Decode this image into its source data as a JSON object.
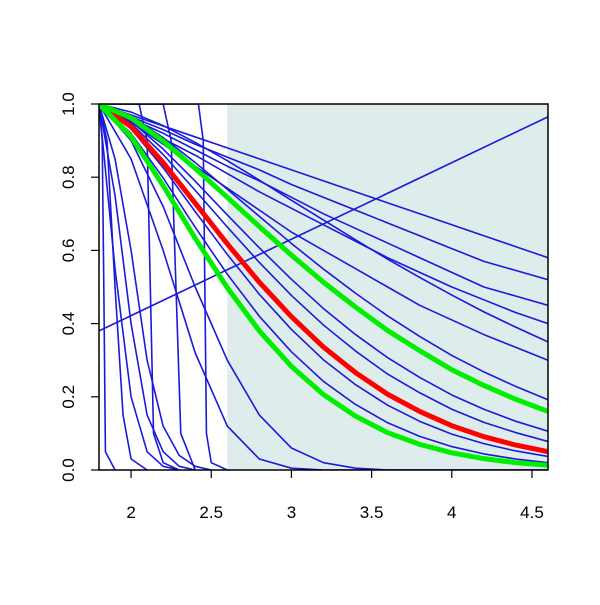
{
  "chart_data": {
    "type": "line",
    "xlim": [
      1.8,
      4.6
    ],
    "ylim": [
      0,
      1
    ],
    "xticks": [
      2.0,
      2.5,
      3.0,
      3.5,
      4.0,
      4.5
    ],
    "yticks": [
      0.0,
      0.2,
      0.4,
      0.6,
      0.8,
      1.0
    ],
    "shaded_region": {
      "xlim": [
        2.6,
        4.6
      ],
      "color": "#deeceb"
    },
    "line_color": "#1a1adb",
    "x": [
      1.8,
      2.0,
      2.2,
      2.4,
      2.6,
      2.8,
      3.0,
      3.2,
      3.4,
      3.6,
      3.8,
      4.0,
      4.2,
      4.4,
      4.6
    ],
    "series": [
      {
        "values": [
          1,
          0.97,
          0.94,
          0.91,
          0.88,
          0.85,
          0.82,
          0.79,
          0.76,
          0.73,
          0.7,
          0.67,
          0.64,
          0.61,
          0.58
        ]
      },
      {
        "values": [
          1,
          0.965,
          0.93,
          0.89,
          0.855,
          0.82,
          0.78,
          0.745,
          0.71,
          0.675,
          0.64,
          0.605,
          0.57,
          0.545,
          0.52
        ]
      },
      {
        "values": [
          1,
          0.96,
          0.92,
          0.875,
          0.83,
          0.79,
          0.745,
          0.7,
          0.66,
          0.62,
          0.58,
          0.54,
          0.5,
          0.475,
          0.45
        ]
      },
      {
        "values": [
          1,
          0.955,
          0.905,
          0.86,
          0.81,
          0.76,
          0.715,
          0.67,
          0.625,
          0.58,
          0.54,
          0.5,
          0.465,
          0.43,
          0.4
        ]
      },
      {
        "values": [
          1,
          0.978,
          0.941,
          0.895,
          0.845,
          0.792,
          0.737,
          0.683,
          0.629,
          0.576,
          0.526,
          0.478,
          0.432,
          0.39,
          0.35
        ]
      },
      {
        "values": [
          1,
          0.95,
          0.89,
          0.83,
          0.77,
          0.71,
          0.65,
          0.6,
          0.55,
          0.5,
          0.45,
          0.41,
          0.37,
          0.335,
          0.3
        ]
      },
      {
        "values": [
          1,
          0.966,
          0.908,
          0.84,
          0.767,
          0.693,
          0.619,
          0.549,
          0.483,
          0.421,
          0.365,
          0.313,
          0.268,
          0.228,
          0.192
        ]
      },
      {
        "values": [
          1,
          0.953,
          0.877,
          0.789,
          0.697,
          0.607,
          0.521,
          0.441,
          0.37,
          0.307,
          0.253,
          0.205,
          0.166,
          0.133,
          0.106
        ]
      },
      {
        "values": [
          1,
          0.947,
          0.862,
          0.764,
          0.664,
          0.567,
          0.477,
          0.396,
          0.325,
          0.262,
          0.211,
          0.166,
          0.13,
          0.102,
          0.078
        ]
      },
      {
        "values": [
          1,
          0.932,
          0.826,
          0.706,
          0.589,
          0.48,
          0.384,
          0.301,
          0.233,
          0.177,
          0.133,
          0.098,
          0.072,
          0.052,
          0.037
        ]
      },
      {
        "values": [
          1,
          0.92,
          0.798,
          0.663,
          0.535,
          0.42,
          0.323,
          0.242,
          0.179,
          0.129,
          0.092,
          0.064,
          0.044,
          0.03,
          0.02
        ]
      },
      {
        "values": [
          1,
          0.9,
          0.72,
          0.5,
          0.3,
          0.15,
          0.06,
          0.02,
          0.005,
          0,
          0,
          0,
          0,
          0,
          0
        ]
      },
      {
        "values": [
          1,
          0.85,
          0.6,
          0.32,
          0.12,
          0.03,
          0.005,
          0,
          0,
          0,
          0,
          0,
          0,
          0,
          0
        ]
      },
      {
        "x": [
          1.8,
          4.6
        ],
        "values": [
          0.38,
          0.965
        ]
      },
      {
        "x": [
          1.8,
          1.9,
          2.0,
          2.1,
          2.2,
          2.3
        ],
        "values": [
          1,
          0.55,
          0.2,
          0.05,
          0.01,
          0
        ]
      },
      {
        "x": [
          1.8,
          1.9,
          2.0,
          2.1,
          2.2,
          2.3,
          2.4
        ],
        "values": [
          1,
          0.75,
          0.4,
          0.15,
          0.05,
          0.01,
          0
        ]
      },
      {
        "x": [
          1.8,
          1.9,
          2.0,
          2.1,
          2.2,
          2.3,
          2.4,
          2.5
        ],
        "values": [
          1,
          0.85,
          0.6,
          0.3,
          0.12,
          0.04,
          0.01,
          0
        ]
      },
      {
        "x": [
          1.8,
          2.05,
          2.1,
          2.12,
          2.14,
          2.2,
          2.3
        ],
        "values": [
          1,
          1,
          0.9,
          0.5,
          0.1,
          0.02,
          0
        ]
      },
      {
        "x": [
          1.85,
          2.2,
          2.25,
          2.28,
          2.31,
          2.4
        ],
        "values": [
          1,
          1,
          0.9,
          0.5,
          0.1,
          0
        ]
      },
      {
        "x": [
          1.95,
          2.42,
          2.45,
          2.46,
          2.47,
          2.5,
          2.6
        ],
        "values": [
          1,
          1,
          0.9,
          0.5,
          0.1,
          0.02,
          0
        ]
      },
      {
        "x": [
          1.8,
          1.82,
          1.83,
          1.84,
          1.9
        ],
        "values": [
          1,
          0.9,
          0.5,
          0.05,
          0
        ]
      },
      {
        "x": [
          1.8,
          1.85,
          1.9,
          1.95,
          2.0,
          2.1
        ],
        "values": [
          1,
          0.9,
          0.5,
          0.15,
          0.03,
          0
        ]
      },
      {
        "color": "#ff0000",
        "values": [
          1,
          0.938,
          0.84,
          0.729,
          0.618,
          0.513,
          0.419,
          0.336,
          0.266,
          0.207,
          0.16,
          0.121,
          0.091,
          0.068,
          0.05
        ]
      },
      {
        "color": "#00ee00",
        "values": [
          1,
          0.962,
          0.899,
          0.824,
          0.745,
          0.665,
          0.587,
          0.513,
          0.445,
          0.381,
          0.326,
          0.274,
          0.231,
          0.193,
          0.16
        ]
      },
      {
        "color": "#00ee00",
        "values": [
          1,
          0.911,
          0.777,
          0.633,
          0.498,
          0.38,
          0.283,
          0.206,
          0.147,
          0.102,
          0.07,
          0.047,
          0.031,
          0.02,
          0.013
        ]
      }
    ]
  }
}
